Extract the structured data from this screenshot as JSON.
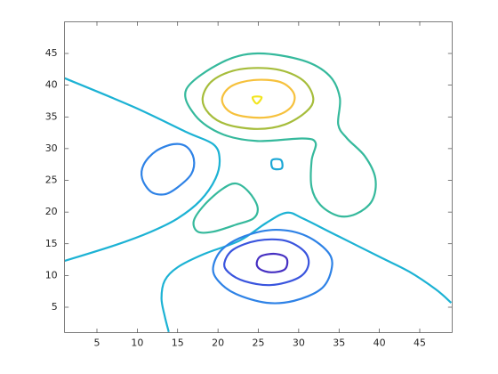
{
  "chart_data": {
    "type": "contour",
    "xlim": [
      1,
      49
    ],
    "ylim": [
      1,
      50
    ],
    "xticks": [
      5,
      10,
      15,
      20,
      25,
      30,
      35,
      40,
      45
    ],
    "yticks": [
      5,
      10,
      15,
      20,
      25,
      30,
      35,
      40,
      45
    ],
    "series": [
      {
        "color": "#1cb2d4",
        "closed": false,
        "x": [
          1.0,
          9.5,
          16.1,
          19.4,
          20.2,
          19.7,
          17.8,
          15.0,
          11.7,
          7.3,
          1.0
        ],
        "y": [
          41.1,
          36.6,
          32.6,
          30.7,
          28.4,
          25.3,
          21.8,
          19.0,
          16.9,
          14.8,
          12.3
        ]
      },
      {
        "color": "#1cb2d4",
        "closed": false,
        "x": [
          13.9,
          13.4,
          13.0,
          13.4,
          15.0,
          18.3,
          22.7,
          26.0,
          28.5,
          30.5,
          33.8,
          37.1,
          40.4,
          43.7,
          47.0,
          48.9
        ],
        "y": [
          1.1,
          3.6,
          6.4,
          9.2,
          11.3,
          13.4,
          15.5,
          18.3,
          19.9,
          19.0,
          16.9,
          14.8,
          12.7,
          10.6,
          7.8,
          5.7
        ]
      },
      {
        "color": "#1ba7d6",
        "closed": true,
        "x": [
          26.7,
          27.8,
          27.9,
          26.8
        ],
        "y": [
          28.2,
          28.2,
          26.9,
          26.9
        ]
      },
      {
        "color": "#2e82e6",
        "closed": true,
        "x": [
          14.5,
          16.1,
          17.0,
          16.7,
          15.0,
          13.4,
          11.7,
          10.6,
          10.8,
          12.3
        ],
        "y": [
          30.7,
          30.3,
          28.4,
          26.0,
          23.9,
          22.8,
          23.2,
          25.3,
          27.5,
          29.6
        ]
      },
      {
        "color": "#2e82e6",
        "closed": true,
        "x": [
          19.4,
          20.5,
          23.3,
          27.2,
          31.0,
          33.8,
          34.0,
          32.7,
          29.4,
          26.0,
          22.2,
          20.0
        ],
        "y": [
          11.3,
          14.1,
          16.2,
          17.2,
          16.2,
          13.4,
          10.6,
          7.8,
          6.0,
          5.7,
          7.1,
          9.2
        ]
      },
      {
        "color": "#3a55de",
        "closed": true,
        "x": [
          20.8,
          21.9,
          24.9,
          28.3,
          30.7,
          31.2,
          29.9,
          26.6,
          23.3,
          21.3
        ],
        "y": [
          12.0,
          14.1,
          15.5,
          15.5,
          13.8,
          11.6,
          9.6,
          8.5,
          9.1,
          10.5
        ]
      },
      {
        "color": "#4630c2",
        "closed": true,
        "x": [
          24.8,
          25.4,
          27.2,
          28.5,
          28.3,
          26.6,
          25.2
        ],
        "y": [
          12.0,
          13.1,
          13.4,
          12.7,
          11.0,
          10.5,
          11.0
        ]
      },
      {
        "color": "#35b99c",
        "closed": true,
        "x": [
          22.2,
          23.8,
          24.9,
          24.4,
          22.2,
          19.4,
          17.5,
          17.0,
          18.3,
          20.5
        ],
        "y": [
          24.5,
          23.2,
          20.8,
          19.0,
          18.0,
          16.9,
          16.9,
          18.6,
          21.1,
          23.6
        ]
      },
      {
        "color": "#35b99c",
        "closed": true,
        "x": [
          24.9,
          20.5,
          16.1,
          17.2,
          20.5,
          24.9,
          30.5,
          32.1,
          31.6,
          31.6,
          32.7,
          34.9,
          37.1,
          39.1,
          39.5,
          38.2,
          36.0,
          34.9,
          35.1,
          33.8,
          30.5
        ],
        "y": [
          45.0,
          43.6,
          39.4,
          35.2,
          32.3,
          31.2,
          31.6,
          30.9,
          28.1,
          23.9,
          21.1,
          19.4,
          19.7,
          21.8,
          25.3,
          28.8,
          31.6,
          33.8,
          38.0,
          41.5,
          43.9
        ]
      },
      {
        "color": "#a6bd3b",
        "closed": true,
        "x": [
          18.1,
          19.4,
          22.7,
          27.2,
          30.5,
          31.8,
          31.0,
          28.3,
          24.9,
          21.1,
          18.9
        ],
        "y": [
          38.0,
          40.8,
          42.5,
          42.5,
          40.8,
          38.0,
          35.9,
          33.8,
          33.1,
          33.8,
          35.5
        ]
      },
      {
        "color": "#f6c13c",
        "closed": true,
        "x": [
          20.5,
          21.6,
          24.4,
          27.7,
          29.4,
          29.1,
          27.2,
          24.4,
          21.6
        ],
        "y": [
          37.7,
          39.8,
          40.8,
          40.5,
          38.7,
          36.6,
          35.2,
          34.9,
          35.7
        ]
      },
      {
        "color": "#f2e51d",
        "closed": true,
        "x": [
          24.3,
          25.4,
          24.8
        ],
        "y": [
          38.1,
          38.1,
          37.1
        ]
      }
    ]
  }
}
